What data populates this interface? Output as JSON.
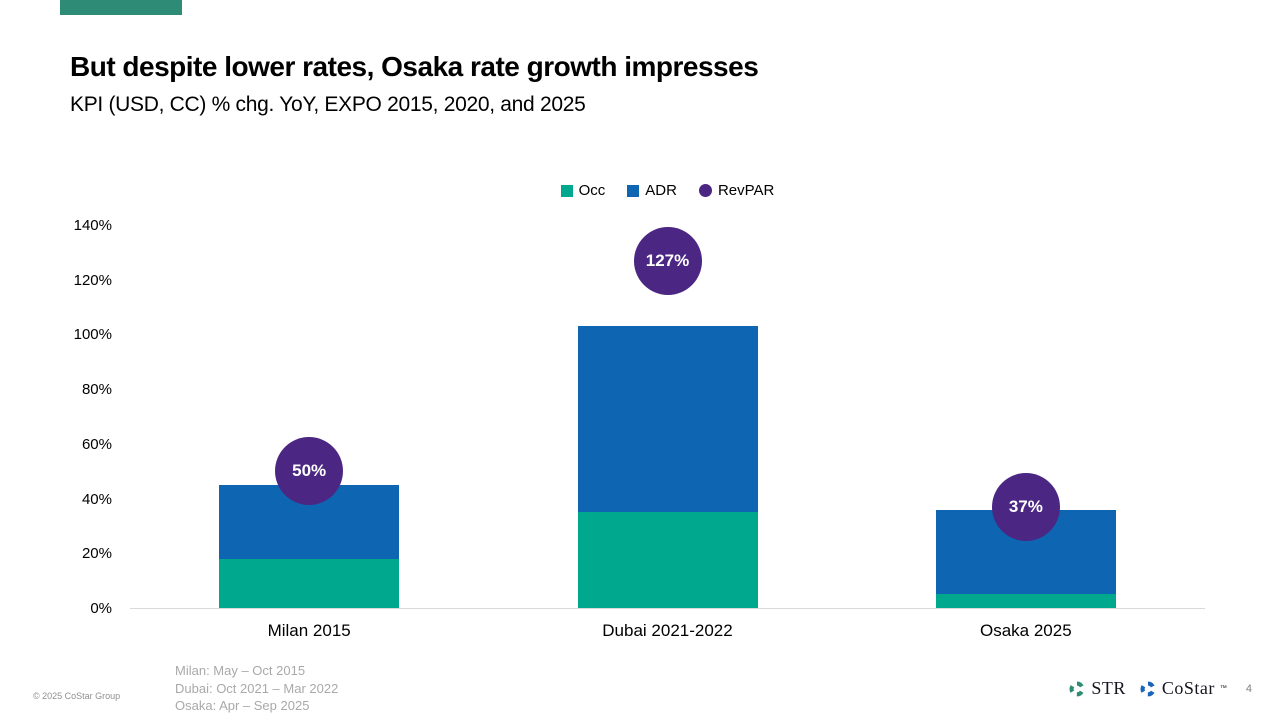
{
  "slide": {
    "title": "But despite lower rates, Osaka rate growth impresses",
    "subtitle": "KPI (USD, CC) % chg. YoY, EXPO 2015, 2020, and 2025",
    "accent_color": "#2E8C76"
  },
  "chart_data": {
    "type": "bar",
    "subtype": "stacked-bars-with-value-bubbles",
    "categories": [
      "Milan 2015",
      "Dubai 2021-2022",
      "Osaka 2025"
    ],
    "series": [
      {
        "name": "Occ",
        "render": "bar",
        "marker": "square",
        "color": "#00A98E",
        "values": [
          18,
          35,
          5
        ]
      },
      {
        "name": "ADR",
        "render": "bar",
        "marker": "square",
        "color": "#0E65B2",
        "values": [
          27,
          68,
          31
        ]
      },
      {
        "name": "RevPAR",
        "render": "bubble",
        "marker": "circle",
        "color": "#4B2683",
        "values": [
          50,
          127,
          37
        ],
        "labels": [
          "50%",
          "127%",
          "37%"
        ]
      }
    ],
    "stack_totals": [
      45,
      103,
      36
    ],
    "ylim": [
      0,
      140
    ],
    "ytick_step": 20,
    "ytick_labels": [
      "0%",
      "20%",
      "40%",
      "60%",
      "80%",
      "100%",
      "120%",
      "140%"
    ],
    "grid": false,
    "legend_position": "top-center",
    "axis_line_color": "#D9D9D9"
  },
  "footnotes": {
    "lines": [
      "Milan: May – Oct 2015",
      "Dubai: Oct 2021 – Mar 2022",
      "Osaka: Apr – Sep 2025"
    ]
  },
  "footer": {
    "copyright": "© 2025 CoStar Group",
    "str_label": "STR",
    "costar_label": "CoStar",
    "costar_tm": "™",
    "page_number": "4",
    "str_icon_color": "#2E8C74",
    "costar_icon_color": "#1C64B8"
  }
}
